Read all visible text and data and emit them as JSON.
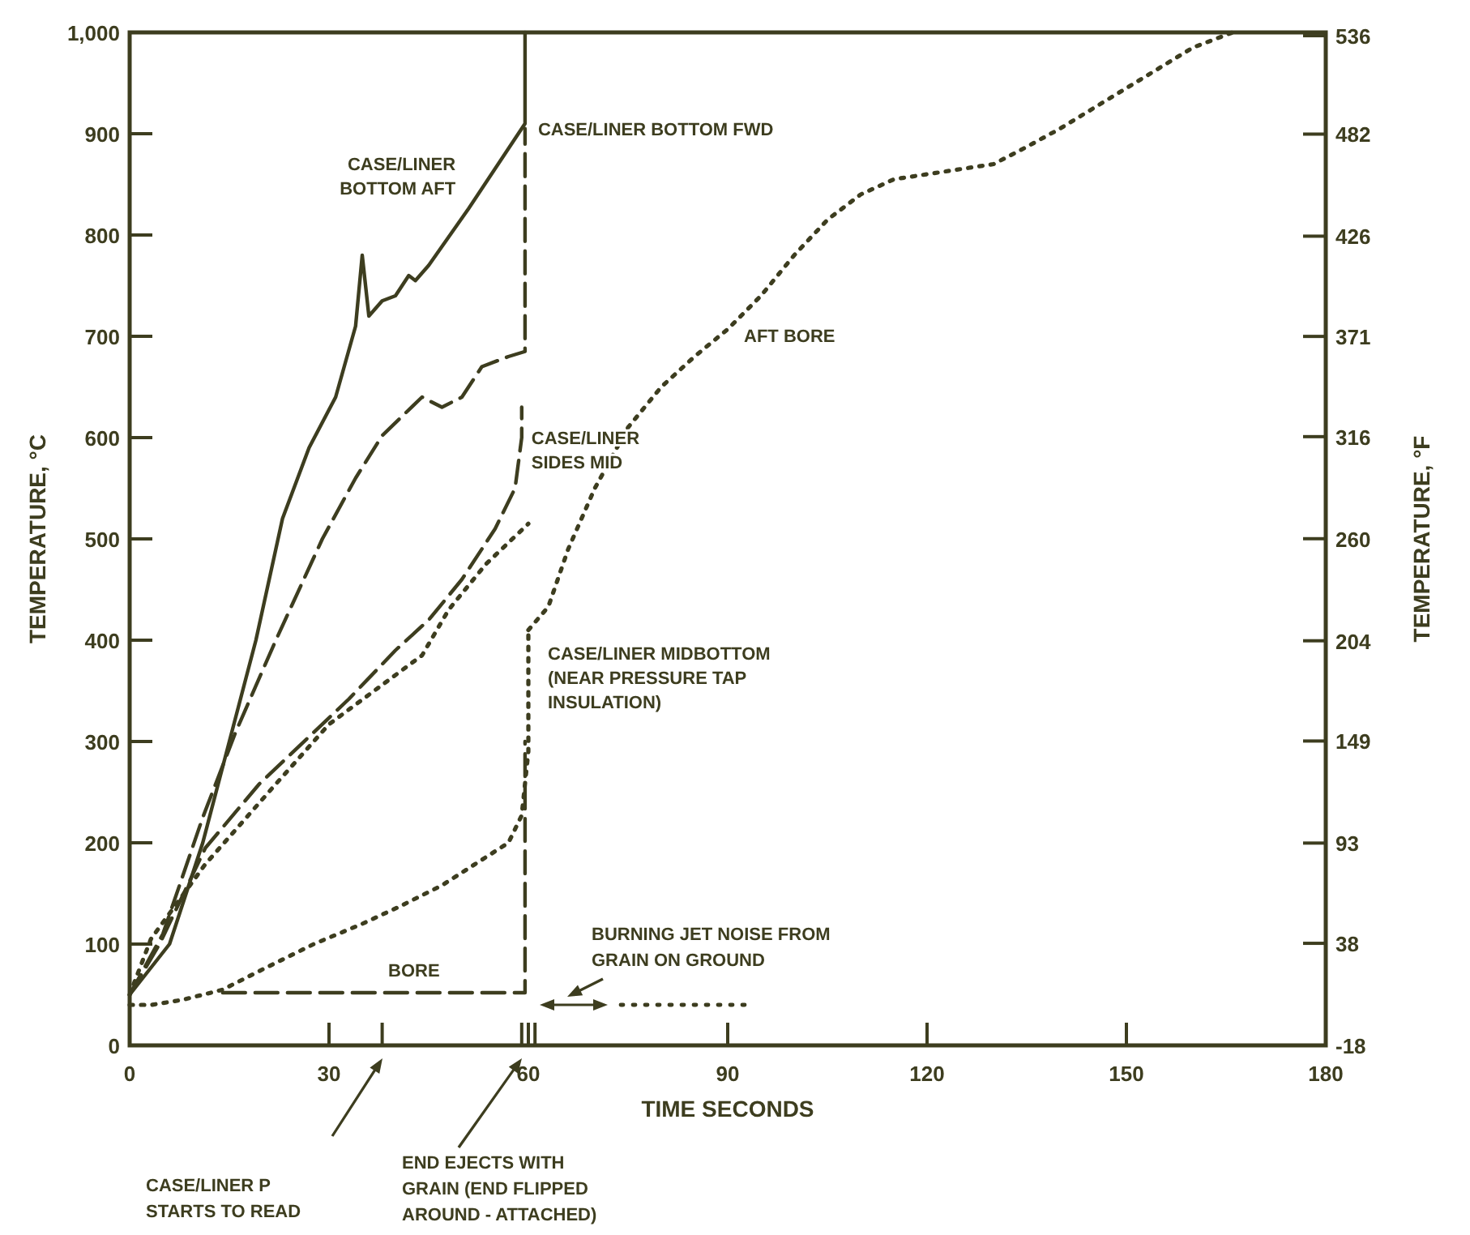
{
  "chart_data": {
    "type": "line",
    "xlabel": "TIME SECONDS",
    "ylabel": "TEMPERATURE, °C",
    "y2label": "TEMPERATURE, °F",
    "xlim": [
      0,
      180
    ],
    "xticks": [
      0,
      30,
      {
        "value": 38,
        "label": null
      },
      {
        "value": 59,
        "label": null
      },
      60,
      {
        "value": 61,
        "label": null
      },
      90,
      120,
      150,
      180
    ],
    "ylim": [
      0,
      1000
    ],
    "yticks": [
      0,
      100,
      200,
      300,
      400,
      500,
      600,
      700,
      800,
      900,
      {
        "value": 1000,
        "label": "1,000"
      }
    ],
    "y2lim": [
      -18,
      537.8
    ],
    "y2ticks": [
      -18,
      38,
      93,
      149,
      204,
      260,
      316,
      371,
      426,
      482,
      536
    ],
    "marker": "none",
    "series": [
      {
        "name": "CASE/LINER BOTTOM AFT",
        "color": "#3d3d1f",
        "line_style": "solid",
        "x": [
          0,
          6,
          11,
          15,
          19,
          23,
          27,
          31,
          34,
          35,
          36,
          38,
          40,
          42,
          43,
          45,
          51,
          59.5,
          59.5
        ],
        "values": [
          50,
          100,
          200,
          300,
          400,
          520,
          590,
          640,
          710,
          780,
          720,
          735,
          740,
          760,
          755,
          770,
          826,
          910,
          1000
        ]
      },
      {
        "name": "CASE/LINER BOTTOM FWD",
        "color": "#3d3d1f",
        "line_style": "dashed",
        "x": [
          0,
          5,
          11,
          16,
          22,
          29,
          34,
          38,
          44,
          47,
          50,
          53,
          57,
          59.5,
          59.5
        ],
        "values": [
          50,
          110,
          225,
          310,
          400,
          500,
          560,
          602,
          640,
          630,
          640,
          670,
          680,
          685,
          905
        ]
      },
      {
        "name": "CASE/LINER SIDES MID",
        "color": "#3d3d1f",
        "line_style": "dashed",
        "x": [
          0,
          4.5,
          11.4,
          19.5,
          33,
          40,
          45,
          50,
          55,
          58,
          59,
          59
        ],
        "values": [
          50,
          100,
          195,
          258,
          342,
          390,
          420,
          460,
          510,
          550,
          600,
          630
        ]
      },
      {
        "color": "#3d3d1f",
        "line_style": "dotted",
        "x": [
          0,
          3.2,
          11.4,
          22,
          30,
          44,
          48,
          53.6,
          60
        ],
        "values": [
          50,
          105,
          179,
          258,
          317,
          385,
          430,
          475,
          515
        ]
      },
      {
        "name": "CASE/LINER MIDBOTTOM (NEAR PRESSURE TAP INSULATION)",
        "color": "#3d3d1f",
        "line_style": "dotted",
        "x": [
          0,
          3.3,
          8,
          14,
          20,
          27.7,
          35,
          40.6,
          47,
          52,
          57,
          59,
          60,
          60
        ],
        "values": [
          40,
          40,
          45,
          55,
          75,
          100,
          120,
          137,
          158,
          179,
          200,
          227,
          290,
          410
        ]
      },
      {
        "name": "BORE",
        "color": "#3d3d1f",
        "line_style": "dashed",
        "x": [
          14,
          59.5,
          59.5
        ],
        "values": [
          52,
          52,
          300
        ]
      },
      {
        "name": "AFT BORE",
        "color": "#3d3d1f",
        "line_style": "dotted",
        "x": [
          60,
          63,
          66,
          70,
          75,
          80,
          85,
          90,
          95,
          100,
          105,
          110,
          115,
          120,
          130,
          135,
          140,
          145,
          150,
          155,
          160,
          166
        ],
        "values": [
          410,
          433,
          490,
          550,
          610,
          650,
          680,
          707,
          740,
          780,
          815,
          840,
          855,
          860,
          870,
          887,
          905,
          925,
          945,
          965,
          985,
          1000
        ]
      }
    ],
    "annotations": [
      "CASE/LINER P STARTS TO READ",
      "END EJECTS WITH GRAIN (END FLIPPED AROUND - ATTACHED)",
      "BURNING JET NOISE FROM GRAIN ON GROUND"
    ]
  }
}
